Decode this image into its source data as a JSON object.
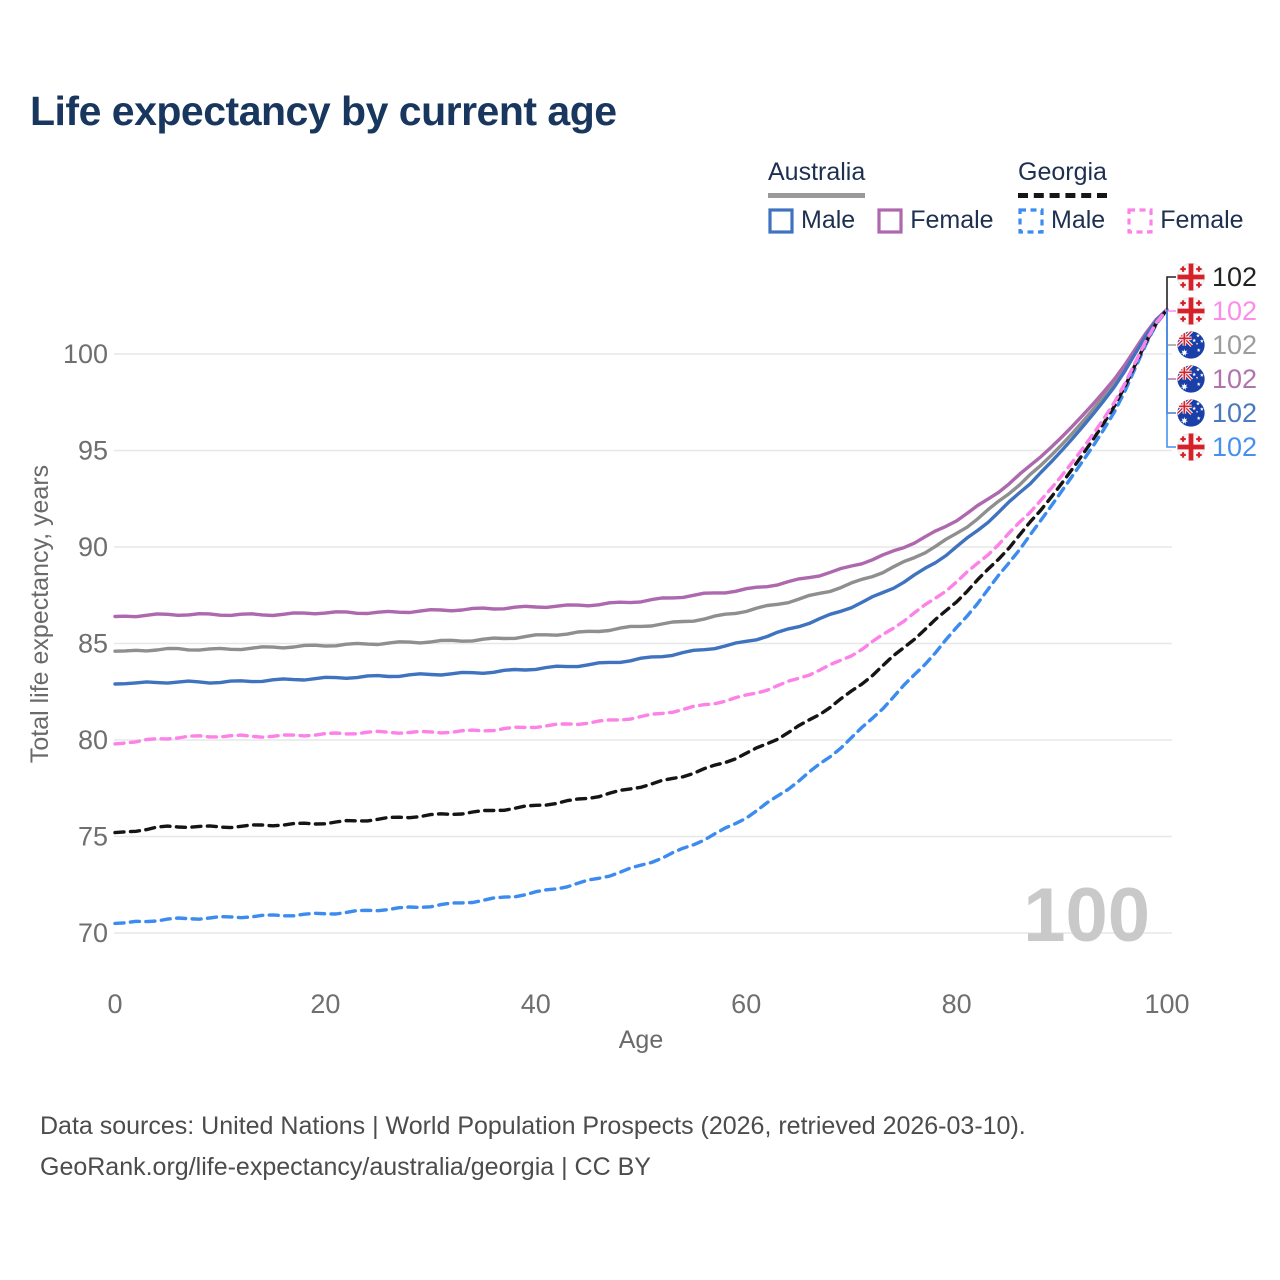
{
  "title": "Life expectancy by current age",
  "legend": {
    "groups": [
      {
        "name": "Australia",
        "line_style": "solid",
        "underline_color": "#9a9a9a",
        "items": [
          {
            "label": "Male",
            "color": "#3f73c0"
          },
          {
            "label": "Female",
            "color": "#ad68ae"
          }
        ]
      },
      {
        "name": "Georgia",
        "line_style": "dashed",
        "underline_color": "#161616",
        "items": [
          {
            "label": "Male",
            "color": "#3c8cf0"
          },
          {
            "label": "Female",
            "color": "#fd82e7"
          }
        ]
      }
    ]
  },
  "chart_data": {
    "type": "line",
    "title": "Life expectancy by current age",
    "xlabel": "Age",
    "ylabel": "Total life expectancy, years",
    "x_ticks": [
      0,
      20,
      40,
      60,
      80,
      100
    ],
    "y_ticks": [
      70,
      75,
      80,
      85,
      90,
      95,
      100
    ],
    "xlim": [
      0,
      100
    ],
    "ylim": [
      68.5,
      103.5
    ],
    "grid": "horizontal",
    "legend_position": "top-right",
    "watermark_age": "100",
    "ages": [
      0,
      5,
      10,
      15,
      20,
      25,
      30,
      35,
      40,
      45,
      50,
      55,
      60,
      65,
      70,
      75,
      80,
      85,
      90,
      95,
      100
    ],
    "series": [
      {
        "id": "australia-avg",
        "name": "Australia (both sexes)",
        "country": "australia",
        "color": "#8f8f8f",
        "dashed": false,
        "values": [
          84.6,
          84.7,
          84.7,
          84.8,
          84.9,
          85.0,
          85.1,
          85.2,
          85.4,
          85.6,
          85.9,
          86.2,
          86.7,
          87.3,
          88.1,
          89.2,
          90.7,
          92.8,
          95.3,
          98.5,
          102.3
        ]
      },
      {
        "id": "australia-female",
        "name": "Australia Female",
        "country": "australia",
        "color": "#ad68ae",
        "dashed": false,
        "values": [
          86.4,
          86.5,
          86.5,
          86.5,
          86.6,
          86.6,
          86.7,
          86.8,
          86.9,
          87.0,
          87.2,
          87.5,
          87.8,
          88.3,
          89.0,
          90.0,
          91.4,
          93.3,
          95.7,
          98.7,
          102.3
        ]
      },
      {
        "id": "australia-male",
        "name": "Australia Male",
        "country": "australia",
        "color": "#3f73c0",
        "dashed": false,
        "values": [
          82.9,
          83.0,
          83.0,
          83.1,
          83.2,
          83.3,
          83.4,
          83.5,
          83.7,
          83.9,
          84.2,
          84.6,
          85.1,
          85.9,
          86.9,
          88.2,
          90.0,
          92.3,
          95.0,
          98.3,
          102.3
        ]
      },
      {
        "id": "georgia-male",
        "name": "Georgia Male",
        "country": "georgia",
        "color": "#3c8cf0",
        "dashed": true,
        "values": [
          70.5,
          70.7,
          70.8,
          70.9,
          71.0,
          71.2,
          71.4,
          71.7,
          72.1,
          72.7,
          73.5,
          74.6,
          76.0,
          77.9,
          80.1,
          82.8,
          85.8,
          89.2,
          92.9,
          97.0,
          102.3
        ]
      },
      {
        "id": "georgia-avg",
        "name": "Georgia (both sexes)",
        "country": "georgia",
        "color": "#151515",
        "dashed": true,
        "values": [
          75.2,
          75.5,
          75.5,
          75.6,
          75.7,
          75.9,
          76.1,
          76.3,
          76.6,
          77.0,
          77.6,
          78.3,
          79.3,
          80.7,
          82.5,
          84.8,
          87.2,
          90.0,
          93.3,
          97.3,
          102.3
        ]
      },
      {
        "id": "georgia-female",
        "name": "Georgia Female",
        "country": "georgia",
        "color": "#fd82e7",
        "dashed": true,
        "values": [
          79.8,
          80.1,
          80.2,
          80.2,
          80.3,
          80.4,
          80.4,
          80.5,
          80.7,
          80.9,
          81.2,
          81.7,
          82.3,
          83.2,
          84.4,
          86.2,
          88.2,
          90.7,
          93.7,
          97.5,
          102.3
        ]
      }
    ],
    "end_labels": [
      {
        "value": "102",
        "flag": "georgia",
        "series": "Georgia (both sexes)",
        "color": "#222222"
      },
      {
        "value": "102",
        "flag": "georgia",
        "series": "Georgia Female",
        "color": "#fd8ce9"
      },
      {
        "value": "102",
        "flag": "australia",
        "series": "Australia (both sexes)",
        "color": "#9c9c9c"
      },
      {
        "value": "102",
        "flag": "australia",
        "series": "Australia Female",
        "color": "#b173ae"
      },
      {
        "value": "102",
        "flag": "australia",
        "series": "Australia Male",
        "color": "#4b79bd"
      },
      {
        "value": "102",
        "flag": "georgia",
        "series": "Georgia Male",
        "color": "#4691ef"
      }
    ]
  },
  "footer": {
    "line1": "Data sources: United Nations | World Population Prospects (2026, retrieved 2026-03-10).",
    "line2": "GeoRank.org/life-expectancy/australia/georgia | CC BY"
  }
}
